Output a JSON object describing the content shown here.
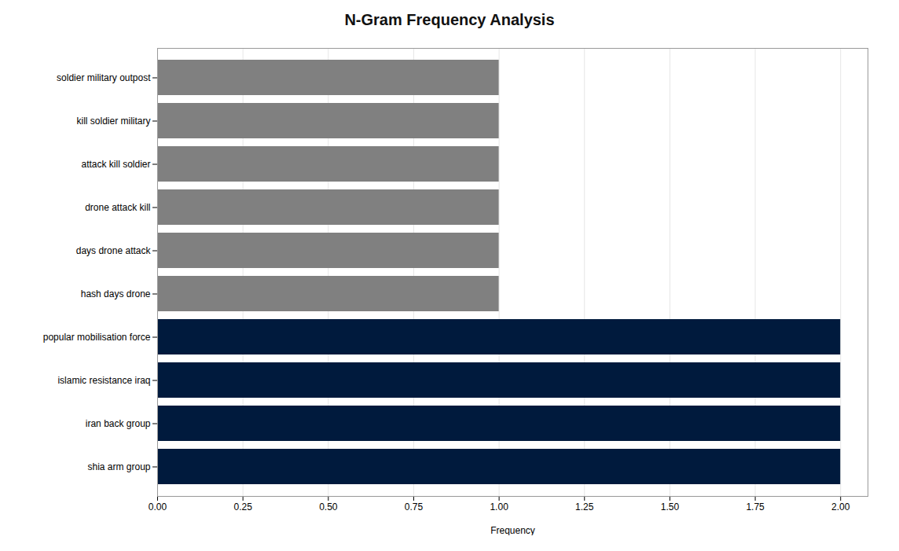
{
  "chart_data": {
    "type": "bar",
    "orientation": "horizontal",
    "title": "N-Gram Frequency Analysis",
    "xlabel": "Frequency",
    "categories": [
      "soldier military outpost",
      "kill soldier military",
      "attack kill soldier",
      "drone attack kill",
      "days drone attack",
      "hash days drone",
      "popular mobilisation force",
      "islamic resistance iraq",
      "iran back group",
      "shia arm group"
    ],
    "values": [
      1,
      1,
      1,
      1,
      1,
      1,
      2,
      2,
      2,
      2
    ],
    "colors": [
      "#808080",
      "#808080",
      "#808080",
      "#808080",
      "#808080",
      "#808080",
      "#001a3d",
      "#001a3d",
      "#001a3d",
      "#001a3d"
    ],
    "xlim": [
      0,
      2.08
    ],
    "xticks": [
      {
        "value": 0.0,
        "label": "0.00"
      },
      {
        "value": 0.25,
        "label": "0.25"
      },
      {
        "value": 0.5,
        "label": "0.50"
      },
      {
        "value": 0.75,
        "label": "0.75"
      },
      {
        "value": 1.0,
        "label": "1.00"
      },
      {
        "value": 1.25,
        "label": "1.25"
      },
      {
        "value": 1.5,
        "label": "1.50"
      },
      {
        "value": 1.75,
        "label": "1.75"
      },
      {
        "value": 2.0,
        "label": "2.00"
      }
    ],
    "grid": true
  }
}
